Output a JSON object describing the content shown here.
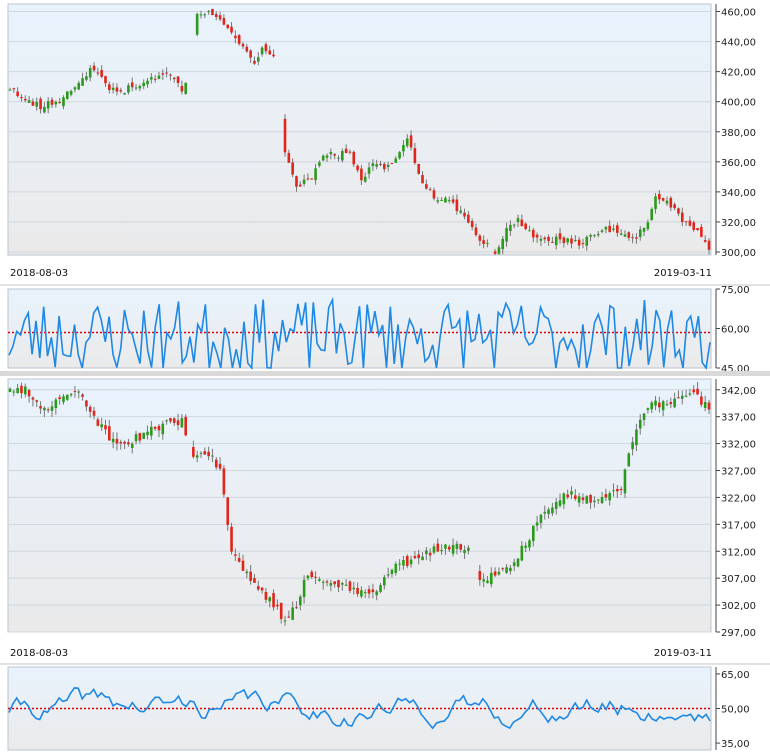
{
  "chart_data": [
    {
      "type": "candlestick",
      "start_date": "2018-08-03",
      "end_date": "2019-03-11",
      "x_labels": [
        "2018-08-03",
        "2019-03-11"
      ],
      "ylim": [
        298,
        465
      ],
      "ticks": [
        "460,00",
        "440,00",
        "420,00",
        "400,00",
        "380,00",
        "360,00",
        "340,00",
        "320,00",
        "300,00"
      ],
      "tick_values": [
        460,
        440,
        420,
        400,
        380,
        360,
        340,
        320,
        300
      ],
      "grid": true,
      "colors": {
        "up": "#2a9a1c",
        "down": "#e0261b",
        "wick": "#777777"
      },
      "keypoints": [
        [
          0,
          409
        ],
        [
          4,
          401
        ],
        [
          8,
          397
        ],
        [
          14,
          402
        ],
        [
          18,
          412
        ],
        [
          22,
          423
        ],
        [
          26,
          409
        ],
        [
          30,
          408
        ],
        [
          36,
          414
        ],
        [
          41,
          421
        ],
        [
          45,
          409
        ],
        [
          46,
          413
        ],
        [
          49,
          460
        ],
        [
          53,
          459
        ],
        [
          57,
          447
        ],
        [
          61,
          436
        ],
        [
          64,
          425
        ],
        [
          66,
          438
        ],
        [
          69,
          428
        ],
        [
          72,
          366
        ],
        [
          75,
          342
        ],
        [
          79,
          350
        ],
        [
          82,
          365
        ],
        [
          89,
          365
        ],
        [
          92,
          348
        ],
        [
          95,
          360
        ],
        [
          98,
          354
        ],
        [
          102,
          365
        ],
        [
          104,
          376
        ],
        [
          107,
          352
        ],
        [
          111,
          335
        ],
        [
          114,
          337
        ],
        [
          120,
          320
        ],
        [
          123,
          307
        ],
        [
          127,
          301
        ],
        [
          131,
          318
        ],
        [
          133,
          322
        ],
        [
          137,
          309
        ],
        [
          145,
          308
        ],
        [
          149,
          305
        ],
        [
          155,
          315
        ],
        [
          158,
          315
        ],
        [
          163,
          308
        ],
        [
          167,
          318
        ],
        [
          169,
          339
        ],
        [
          173,
          331
        ],
        [
          176,
          320
        ],
        [
          180,
          314
        ],
        [
          183,
          302
        ]
      ],
      "gaps": [
        [
          45,
          46
        ],
        [
          46,
          49
        ],
        [
          69,
          72
        ],
        [
          125,
          127
        ]
      ]
    },
    {
      "type": "line",
      "ylim": [
        45,
        75
      ],
      "ticks": [
        "75,00",
        "60,00",
        "45,00"
      ],
      "tick_values": [
        75,
        60,
        45
      ],
      "reference_line": 58.5,
      "colors": {
        "line": "#1e88e5",
        "reference": "#e00000"
      },
      "points": 183
    },
    {
      "type": "candlestick",
      "start_date": "2018-08-03",
      "end_date": "2019-03-11",
      "x_labels": [
        "2018-08-03",
        "2019-03-11"
      ],
      "ylim": [
        297,
        344
      ],
      "ticks": [
        "342,00",
        "337,00",
        "332,00",
        "327,00",
        "322,00",
        "317,00",
        "312,00",
        "307,00",
        "302,00",
        "297,00"
      ],
      "tick_values": [
        342,
        337,
        332,
        327,
        322,
        317,
        312,
        307,
        302,
        297
      ],
      "grid": true,
      "colors": {
        "up": "#2a9a1c",
        "down": "#e0261b",
        "wick": "#777777"
      },
      "keypoints": [
        [
          0,
          342
        ],
        [
          4,
          342
        ],
        [
          8,
          338
        ],
        [
          14,
          341
        ],
        [
          18,
          341
        ],
        [
          22,
          337
        ],
        [
          26,
          333
        ],
        [
          30,
          332
        ],
        [
          36,
          334
        ],
        [
          41,
          336
        ],
        [
          45,
          336
        ],
        [
          48,
          330
        ],
        [
          52,
          330
        ],
        [
          55,
          327
        ],
        [
          58,
          312
        ],
        [
          61,
          309
        ],
        [
          64,
          306
        ],
        [
          68,
          303
        ],
        [
          72,
          299
        ],
        [
          75,
          302
        ],
        [
          78,
          308
        ],
        [
          82,
          306
        ],
        [
          86,
          306
        ],
        [
          92,
          304
        ],
        [
          96,
          304
        ],
        [
          100,
          309
        ],
        [
          104,
          310
        ],
        [
          108,
          311
        ],
        [
          113,
          313
        ],
        [
          117,
          313
        ],
        [
          120,
          313
        ],
        [
          123,
          306
        ],
        [
          127,
          308
        ],
        [
          132,
          310
        ],
        [
          137,
          316
        ],
        [
          141,
          320
        ],
        [
          145,
          323
        ],
        [
          149,
          322
        ],
        [
          153,
          321
        ],
        [
          157,
          322
        ],
        [
          160,
          324
        ],
        [
          162,
          330
        ],
        [
          165,
          336
        ],
        [
          168,
          340
        ],
        [
          172,
          339
        ],
        [
          175,
          340
        ],
        [
          179,
          341
        ],
        [
          183,
          339
        ]
      ],
      "gaps": [
        [
          46,
          48
        ],
        [
          120,
          123
        ]
      ]
    },
    {
      "type": "line",
      "ylim": [
        32,
        68
      ],
      "ticks": [
        "65,00",
        "50,00",
        "35,00"
      ],
      "tick_values": [
        65,
        50,
        35
      ],
      "reference_line": 50,
      "colors": {
        "line": "#1e88e5",
        "reference": "#e00000"
      },
      "points": 183
    }
  ]
}
